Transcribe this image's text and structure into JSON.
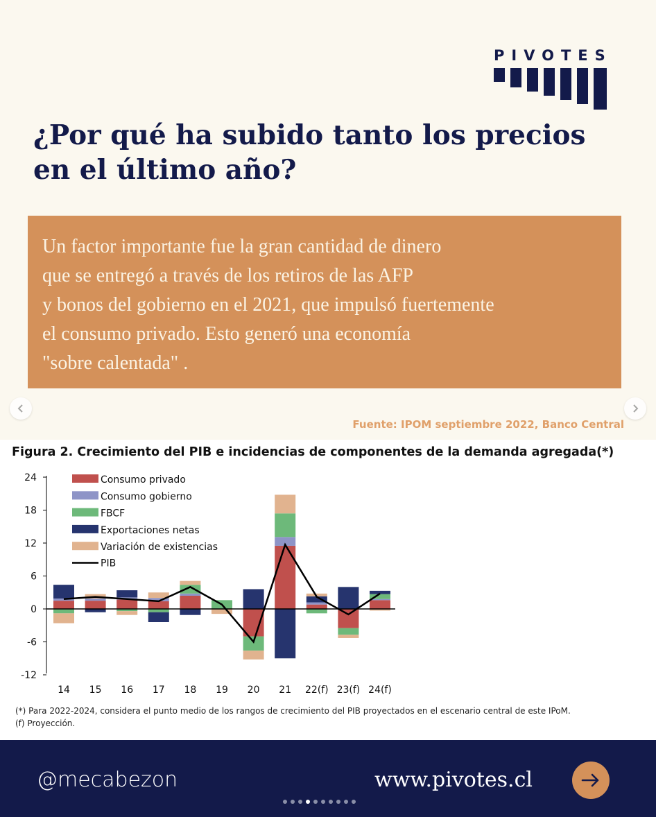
{
  "brand": {
    "logo_text": "PIVOTES",
    "navy": "#131a4a",
    "orange": "#d4915a"
  },
  "headline": {
    "line1": "¿Por qué ha subido tanto los precios",
    "line2": "en el último año?"
  },
  "quote": {
    "lines": [
      "Un factor importante fue la gran cantidad de dinero",
      "que se entregó a través de los retiros de las AFP",
      "y bonos del gobierno en el 2021, que impulsó fuertemente",
      "el consumo privado. Esto generó una economía",
      "\"sobre calentada\" ."
    ]
  },
  "source": "Fuente: IPOM septiembre 2022, Banco Central",
  "carousel": {
    "prev_icon": "chevron-left-icon",
    "next_icon": "chevron-right-icon",
    "dot_count": 10,
    "active_dot": 3
  },
  "figure": {
    "title": "Figura 2. Crecimiento del PIB e incidencias de componentes de la demanda agregada(*)",
    "footnote1": "(*) Para 2022-2024, considera el punto medio de los rangos de crecimiento del PIB proyectados en el escenario central de este IPoM.",
    "footnote2": "(f) Proyección."
  },
  "chart_data": {
    "type": "bar",
    "stacked": true,
    "categories": [
      "14",
      "15",
      "16",
      "17",
      "18",
      "19",
      "20",
      "21",
      "22(f)",
      "23(f)",
      "24(f)"
    ],
    "ylim": [
      -12,
      24
    ],
    "yticks": [
      24,
      18,
      12,
      6,
      0,
      -6,
      -12
    ],
    "legend_position": "top-left",
    "series": [
      {
        "name": "Consumo privado",
        "color": "#c0504d",
        "values": [
          1.5,
          1.5,
          1.7,
          1.4,
          2.4,
          0.0,
          -5.0,
          11.5,
          0.8,
          -3.5,
          1.6
        ]
      },
      {
        "name": "Consumo gobierno",
        "color": "#8e94c7",
        "values": [
          0.4,
          0.4,
          0.4,
          0.6,
          0.4,
          0.0,
          0.0,
          1.6,
          0.4,
          0.0,
          0.2
        ]
      },
      {
        "name": "FBCF",
        "color": "#6db97a",
        "values": [
          -0.8,
          0.0,
          -0.4,
          -0.6,
          1.6,
          1.6,
          -2.6,
          4.3,
          -0.8,
          -1.2,
          0.9
        ]
      },
      {
        "name": "Exportaciones netas",
        "color": "#26346e",
        "values": [
          2.5,
          -0.6,
          1.3,
          -1.8,
          -1.1,
          0.0,
          3.6,
          -9.0,
          1.1,
          4.0,
          0.6
        ]
      },
      {
        "name": "Variación de existencias",
        "color": "#e1b38f",
        "values": [
          -1.8,
          0.8,
          -0.7,
          1.0,
          0.7,
          -0.9,
          -1.6,
          3.4,
          0.5,
          -0.6,
          -0.3
        ]
      }
    ],
    "line": {
      "name": "PIB",
      "color": "#000000",
      "values": [
        1.8,
        2.2,
        1.8,
        1.4,
        4.0,
        0.8,
        -6.0,
        11.7,
        2.2,
        -1.0,
        2.8
      ]
    }
  },
  "footer": {
    "handle": "@mecabezon",
    "website": "www.pivotes.cl",
    "arrow_icon": "arrow-right-icon"
  }
}
